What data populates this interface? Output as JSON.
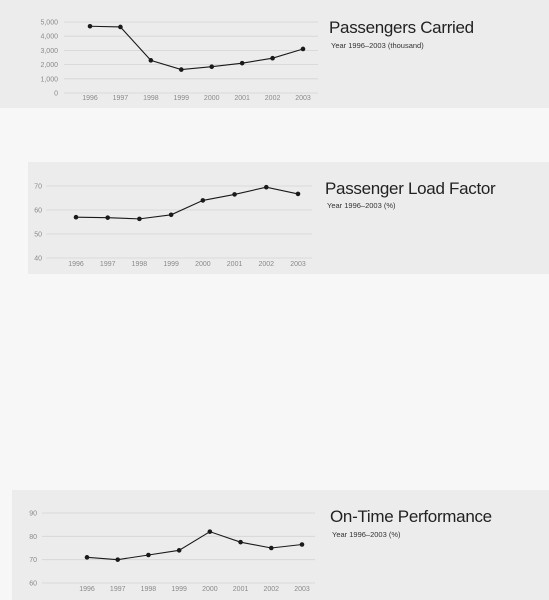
{
  "colors": {
    "panel": "#ececec",
    "background": "#f7f7f7",
    "line": "#1a1a1a",
    "grid": "#d4d4d4",
    "tick_text": "#8a8a8a"
  },
  "chart_data": [
    {
      "type": "line",
      "title": "Passengers Carried",
      "subtitle": "Year 1996–2003 (thousand)",
      "categories": [
        "1996",
        "1997",
        "1998",
        "1999",
        "2000",
        "2001",
        "2002",
        "2003"
      ],
      "values": [
        4700,
        4650,
        2300,
        1650,
        1850,
        2100,
        2450,
        3100
      ],
      "yticks": [
        "5,000",
        "4,000",
        "3,000",
        "2,000",
        "1,000",
        "0"
      ],
      "ytick_values": [
        5000,
        4000,
        3000,
        2000,
        1000,
        0
      ],
      "ylim": [
        0,
        5000
      ],
      "grid": true
    },
    {
      "type": "line",
      "title": "Passenger Load Factor",
      "subtitle": "Year 1996–2003 (%)",
      "categories": [
        "1996",
        "1997",
        "1998",
        "1999",
        "2000",
        "2001",
        "2002",
        "2003"
      ],
      "values": [
        57,
        56.8,
        56.3,
        58,
        64,
        66.5,
        69.5,
        66.7
      ],
      "yticks": [
        "70",
        "60",
        "50",
        "40"
      ],
      "ytick_values": [
        70,
        60,
        50,
        40
      ],
      "ylim": [
        40,
        70
      ],
      "grid": true
    },
    {
      "type": "line",
      "title": "On-Time Performance",
      "subtitle": "Year 1996–2003 (%)",
      "categories": [
        "1996",
        "1997",
        "1998",
        "1999",
        "2000",
        "2001",
        "2002",
        "2003"
      ],
      "values": [
        71,
        70,
        72,
        74,
        82,
        77.5,
        75,
        76.5
      ],
      "yticks": [
        "90",
        "80",
        "70",
        "60"
      ],
      "ytick_values": [
        90,
        80,
        70,
        60
      ],
      "ylim": [
        60,
        90
      ],
      "grid": true
    }
  ]
}
